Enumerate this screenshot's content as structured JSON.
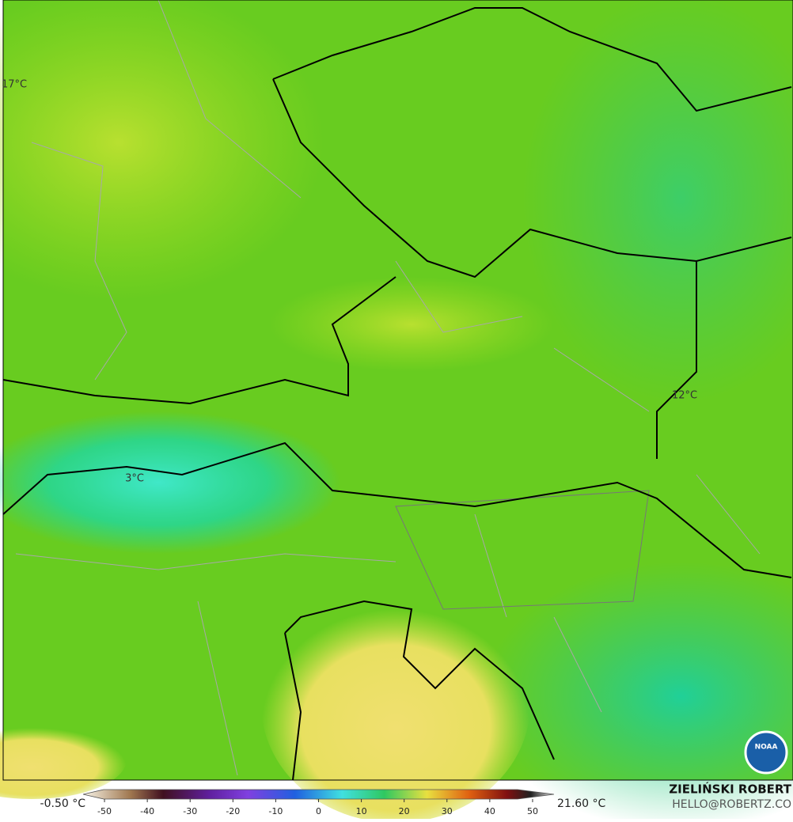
{
  "map": {
    "temperature_labels": [
      "17°C",
      "12°C",
      "3°C"
    ]
  },
  "legend": {
    "min_label": "-0.50 °C",
    "max_label": "21.60 °C",
    "colorbar": {
      "lim": [
        -55,
        55
      ],
      "ticks": [
        -50,
        -40,
        -30,
        -20,
        -10,
        0,
        10,
        20,
        30,
        40,
        50
      ]
    }
  },
  "credits": {
    "author": "ZIELIŃSKI ROBERT",
    "contact": "HELLO@ROBERTZ.CO",
    "logo": "NOAA"
  }
}
